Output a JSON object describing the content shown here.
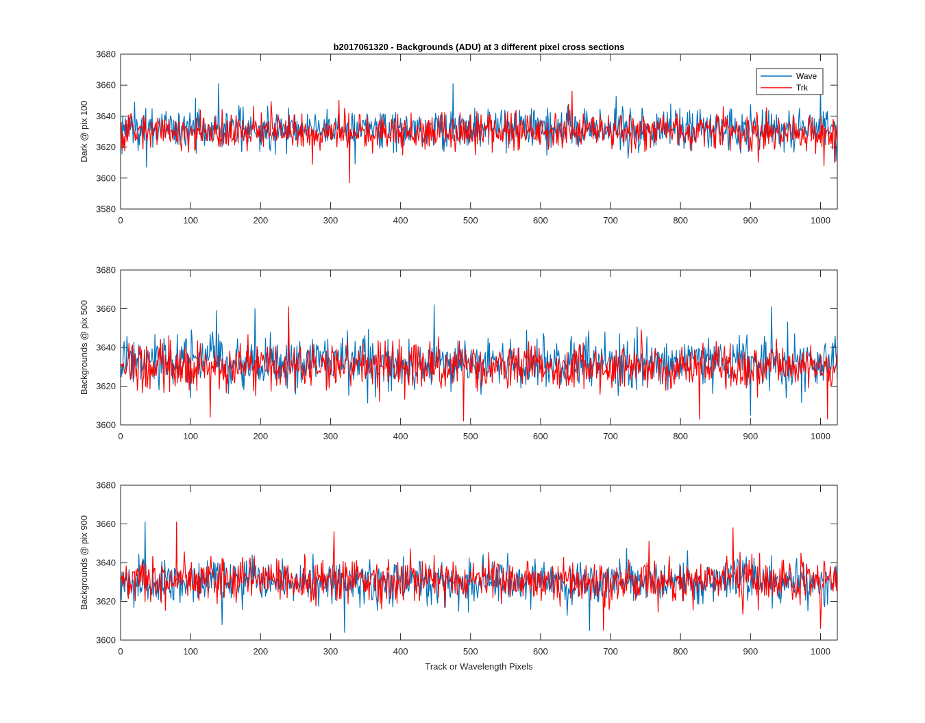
{
  "chart_data": {
    "type": "line",
    "title": "b2017061320 - Backgrounds (ADU) at 3 different pixel cross sections",
    "xlabel": "Track or Wavelength Pixels",
    "legend": {
      "placement": "top-right",
      "entries": [
        "Wave",
        "Trk"
      ]
    },
    "series_colors": {
      "Wave": "#0072BD",
      "Trk": "#FF0000"
    },
    "subplots": [
      {
        "ylabel": "Dark @ pix 100",
        "xlim": [
          0,
          1024
        ],
        "ylim": [
          3580,
          3680
        ],
        "xticks": [
          0,
          100,
          200,
          300,
          400,
          500,
          600,
          700,
          800,
          900,
          1000
        ],
        "yticks": [
          3580,
          3600,
          3620,
          3640,
          3660,
          3680
        ],
        "show_legend": true,
        "series": [
          {
            "name": "Wave",
            "mean": 3632,
            "spread": 9,
            "peaks": [
              [
                140,
                3661
              ],
              [
                475,
                3661
              ],
              [
                37,
                3607
              ],
              [
                335,
                3609
              ],
              [
                1000,
                3659
              ]
            ]
          },
          {
            "name": "Trk",
            "mean": 3630,
            "spread": 8,
            "peaks": [
              [
                327,
                3597
              ],
              [
                645,
                3656
              ],
              [
                320,
                3645
              ],
              [
                1020,
                3610
              ],
              [
                1005,
                3608
              ]
            ]
          }
        ]
      },
      {
        "ylabel": "Backgrounds @ pix 500",
        "xlim": [
          0,
          1024
        ],
        "ylim": [
          3600,
          3680
        ],
        "xticks": [
          0,
          100,
          200,
          300,
          400,
          500,
          600,
          700,
          800,
          900,
          1000
        ],
        "yticks": [
          3600,
          3620,
          3640,
          3660,
          3680
        ],
        "show_legend": false,
        "series": [
          {
            "name": "Wave",
            "mean": 3632,
            "spread": 9,
            "peaks": [
              [
                448,
                3662
              ],
              [
                137,
                3659
              ],
              [
                192,
                3660
              ],
              [
                930,
                3661
              ],
              [
                900,
                3605
              ]
            ]
          },
          {
            "name": "Trk",
            "mean": 3630,
            "spread": 8,
            "peaks": [
              [
                240,
                3661
              ],
              [
                490,
                3602
              ],
              [
                128,
                3604
              ],
              [
                827,
                3603
              ],
              [
                1010,
                3603
              ]
            ]
          }
        ]
      },
      {
        "ylabel": "Backgrounds @ pix 900",
        "xlim": [
          0,
          1024
        ],
        "ylim": [
          3600,
          3680
        ],
        "xticks": [
          0,
          100,
          200,
          300,
          400,
          500,
          600,
          700,
          800,
          900,
          1000
        ],
        "yticks": [
          3600,
          3620,
          3640,
          3660,
          3680
        ],
        "show_legend": false,
        "series": [
          {
            "name": "Wave",
            "mean": 3630,
            "spread": 8,
            "peaks": [
              [
                35,
                3661
              ],
              [
                320,
                3604
              ],
              [
                670,
                3605
              ],
              [
                145,
                3608
              ]
            ]
          },
          {
            "name": "Trk",
            "mean": 3631,
            "spread": 8,
            "peaks": [
              [
                80,
                3661
              ],
              [
                875,
                3658
              ],
              [
                305,
                3656
              ],
              [
                690,
                3605
              ],
              [
                1000,
                3606
              ]
            ]
          }
        ]
      }
    ]
  }
}
